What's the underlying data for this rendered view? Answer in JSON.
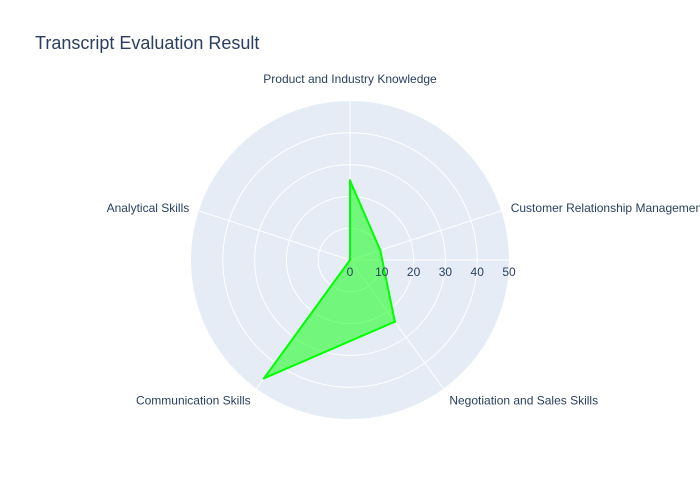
{
  "chart_data": {
    "type": "radar",
    "title": "Transcript Evaluation Result",
    "categories": [
      "Product and Industry Knowledge",
      "Customer Relationship Management",
      "Negotiation and Sales Skills",
      "Communication Skills",
      "Analytical Skills"
    ],
    "values": [
      25,
      10,
      24,
      46,
      0
    ],
    "radial_range": [
      0,
      50
    ],
    "radial_ticks": [
      0,
      10,
      20,
      30,
      40,
      50
    ],
    "grid": true,
    "legend": "none",
    "colors": {
      "line": "#00ff00",
      "fill": "#00ff00",
      "fill_opacity": 0.5,
      "polar_bg": "#e5ecf6",
      "grid": "#ffffff",
      "text": "#2a3f5f"
    }
  }
}
